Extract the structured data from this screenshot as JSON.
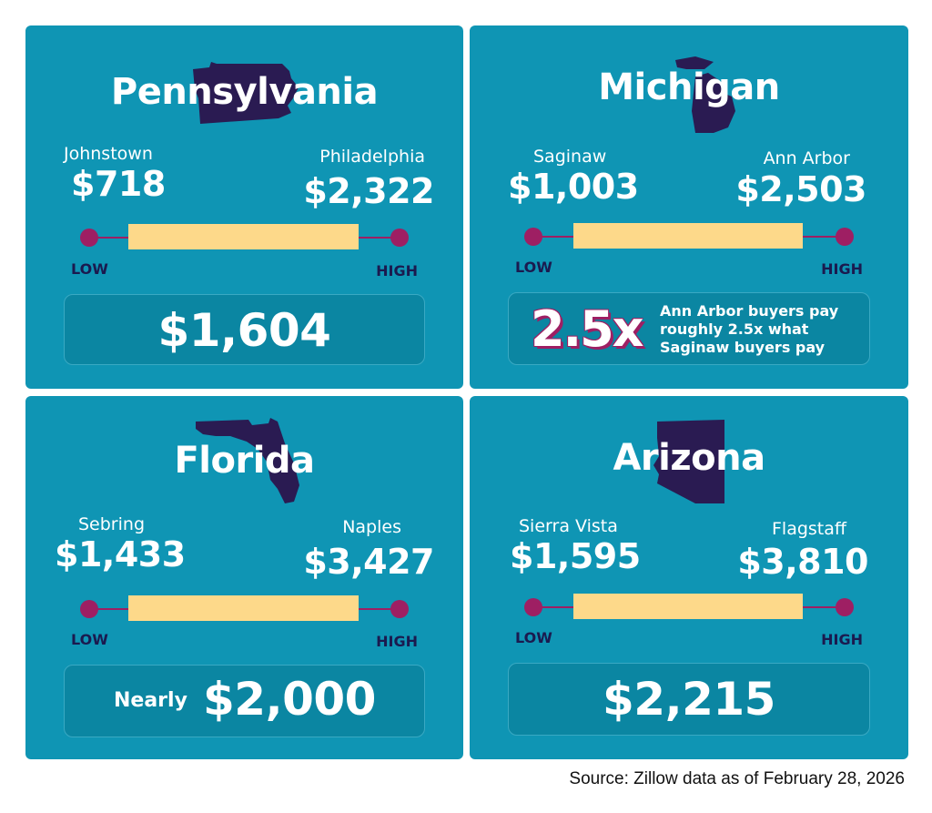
{
  "colors": {
    "card": "#0f95b4",
    "summary_box": "#0b86a2",
    "bar": "#fdd98a",
    "endpoint": "#9e1f63",
    "state_shape": "#2a1b52",
    "low_high_text": "#1b1a4f"
  },
  "labels": {
    "low": "LOW",
    "high": "HIGH"
  },
  "cards": [
    {
      "state": "Pennsylvania",
      "low_city": "Johnstown",
      "low_price": "$718",
      "high_city": "Philadelphia",
      "high_price": "$2,322",
      "summary_value": "$1,604"
    },
    {
      "state": "Michigan",
      "low_city": "Saginaw",
      "low_price": "$1,003",
      "high_city": "Ann Arbor",
      "high_price": "$2,503",
      "summary_multiplier": "2.5x",
      "summary_text": "Ann Arbor buyers pay roughly 2.5x what Saginaw buyers pay"
    },
    {
      "state": "Florida",
      "low_city": "Sebring",
      "low_price": "$1,433",
      "high_city": "Naples",
      "high_price": "$3,427",
      "summary_prefix": "Nearly",
      "summary_value": "$2,000"
    },
    {
      "state": "Arizona",
      "low_city": "Sierra Vista",
      "low_price": "$1,595",
      "high_city": "Flagstaff",
      "high_price": "$3,810",
      "summary_value": "$2,215"
    }
  ],
  "source": "Source: Zillow data as of February 28, 2026"
}
